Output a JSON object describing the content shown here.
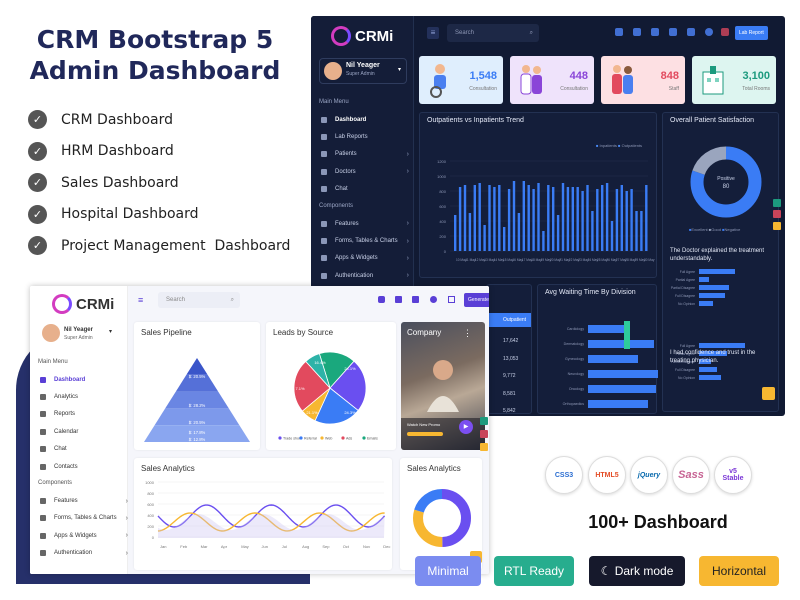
{
  "hero": {
    "line1": "CRM Bootstrap 5",
    "line2": "Admin Dashboard"
  },
  "features": [
    {
      "label": "CRM Dashboard"
    },
    {
      "label": "HRM Dashboard"
    },
    {
      "label": "Sales Dashboard"
    },
    {
      "label": "Hospital Dashboard"
    },
    {
      "label": "Project Management  Dashboard"
    }
  ],
  "dark": {
    "logo": "CRMi",
    "user": {
      "name": "Nil Yeager",
      "role": "Super Admin"
    },
    "menu_header": "Main Menu",
    "components_header": "Components",
    "menu": [
      {
        "label": "Dashboard"
      },
      {
        "label": "Lab Reports"
      },
      {
        "label": "Patients"
      },
      {
        "label": "Doctors"
      },
      {
        "label": "Chat"
      }
    ],
    "components": [
      {
        "label": "Features"
      },
      {
        "label": "Forms, Tables & Charts"
      },
      {
        "label": "Apps & Widgets"
      },
      {
        "label": "Authentication"
      }
    ],
    "search_placeholder": "Search",
    "lab_report": "Lab Report",
    "kpis": [
      {
        "value": "1,548",
        "label": "Consultation",
        "bg": "#dfeefd",
        "color": "#3a7cf5"
      },
      {
        "value": "448",
        "label": "Consultation",
        "bg": "#efe3fb",
        "color": "#8a45d8"
      },
      {
        "value": "848",
        "label": "Staff",
        "bg": "#fde0e3",
        "color": "#e24a5e"
      },
      {
        "value": "3,100",
        "label": "Total Rooms",
        "bg": "#ddf5f0",
        "color": "#1c9a7e"
      }
    ],
    "trend": {
      "title": "Outpatients vs Inpatients Trend",
      "legend": [
        "Inpatients",
        "Outpatients"
      ],
      "y_ticks": [
        "1200",
        "1000",
        "800",
        "600",
        "400",
        "200",
        "0"
      ],
      "x_ticks": [
        "10 May",
        "11 May",
        "12 May",
        "13 May",
        "14 May",
        "15 May",
        "16 May",
        "17 May",
        "18 May",
        "19 May",
        "20 May",
        "21 May",
        "22 May",
        "23 May",
        "24 May",
        "25 May",
        "26 May",
        "27 May",
        "28 May",
        "29 May",
        "30 May"
      ]
    },
    "satisfaction": {
      "title": "Overall Patient Satisfaction",
      "center_label": "Positive",
      "center_value": "80",
      "legend": [
        "Excellent",
        "Good",
        "Negative"
      ],
      "q1": "The Doctor explained the treatment understandably.",
      "q2": "I had confidence and trust in the treating physician.",
      "bar_labels": [
        "Full Agree",
        "Partial Agree",
        "Partial Disagree",
        "Full Disagree",
        "No Opinion"
      ]
    },
    "table_header": "Outpatient",
    "table_values": [
      "17,642",
      "13,053",
      "9,772",
      "8,581",
      "5,842"
    ],
    "wait": {
      "title": "Avg Waiting Time By Division",
      "divisions": [
        "Cardiology",
        "Dermatology",
        "Gynecology",
        "Neurology",
        "Oncology",
        "Orthopaedics"
      ]
    }
  },
  "light": {
    "logo": "CRMi",
    "user": {
      "name": "Nil Yeager",
      "role": "Super Admin"
    },
    "menu_header": "Main Menu",
    "components_header": "Components",
    "menu": [
      {
        "label": "Dashboard"
      },
      {
        "label": "Analytics"
      },
      {
        "label": "Reports"
      },
      {
        "label": "Calendar"
      },
      {
        "label": "Chat"
      },
      {
        "label": "Contacts"
      }
    ],
    "components": [
      {
        "label": "Features"
      },
      {
        "label": "Forms, Tables & Charts"
      },
      {
        "label": "Apps & Widgets"
      },
      {
        "label": "Authentication"
      }
    ],
    "search_placeholder": "Search",
    "generate": "Generate Report",
    "pipeline": {
      "title": "Sales Pipeline",
      "labels": [
        "$: 20.5%",
        "$: 28.2%",
        "$: 20.5%",
        "$: 17.8%",
        "$: 12.8%"
      ]
    },
    "leads": {
      "title": "Leads by Source",
      "labels": [
        "16.4%",
        "24.1%",
        "24.3%",
        "21.1%",
        "7.1%"
      ],
      "legend": [
        "Trade show",
        "Referral",
        "Web",
        "Ads",
        "Emails"
      ]
    },
    "company": {
      "title": "Company",
      "caption": "Watch New Promo"
    },
    "analytics": {
      "title": "Sales Analytics",
      "y_ticks": [
        "1000",
        "800",
        "600",
        "400",
        "200",
        "0"
      ],
      "months": [
        "Jan",
        "Feb",
        "Mar",
        "Apr",
        "May",
        "Jun",
        "Jul",
        "Aug",
        "Sep",
        "Oct",
        "Nov",
        "Dec"
      ]
    },
    "analytics2": {
      "title": "Sales Analytics"
    }
  },
  "tech": [
    {
      "label": "CSS3",
      "color": "#2a6dd1"
    },
    {
      "label": "HTML5",
      "color": "#e44d26"
    },
    {
      "label": "jQuery",
      "color": "#0769ad"
    },
    {
      "label": "Sass",
      "color": "#c76494"
    },
    {
      "label": "v5 Stable",
      "color": "#7a36d6"
    }
  ],
  "hundred": "100+ Dashboard",
  "badges": [
    {
      "label": "Minimal",
      "bg": "#7b8cf0",
      "color": "#fff"
    },
    {
      "label": "RTL Ready",
      "bg": "#27ad8e",
      "color": "#fff"
    },
    {
      "label": "Dark mode",
      "bg": "#16192c",
      "color": "#fff"
    },
    {
      "label": "Horizontal",
      "bg": "#f7b731",
      "color": "#222"
    }
  ]
}
